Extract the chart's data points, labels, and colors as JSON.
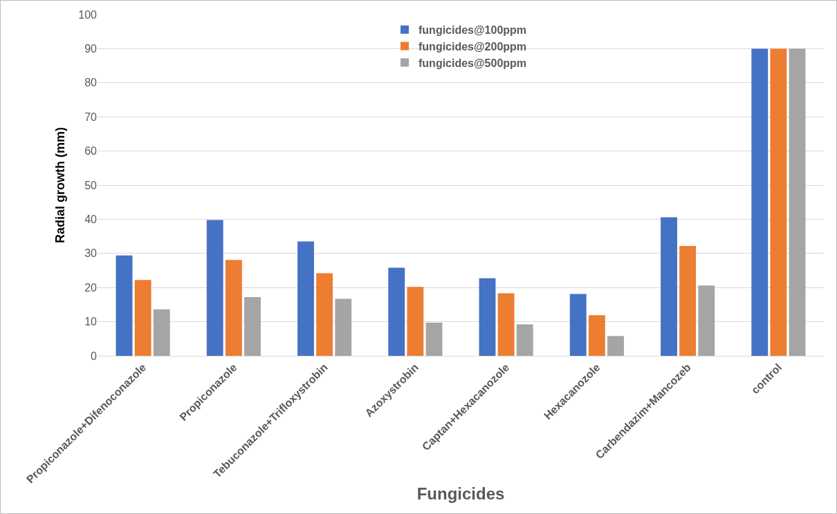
{
  "chart_data": {
    "type": "bar",
    "xlabel": "Fungicides",
    "ylabel": "Radial growth (mm)",
    "categories": [
      "Propiconazole+Difenoconazole",
      "Propiconazole",
      "Tebuconazole+Trifloxystrobin",
      "Azoxystrobin",
      "Captan+Hexacanozole",
      "Hexacanozole",
      "Carbendazim+Mancozeb",
      "control"
    ],
    "series": [
      {
        "name": "fungicides@100ppm",
        "color": "#4472c4",
        "values": [
          29.4,
          39.8,
          33.5,
          25.8,
          22.7,
          18.1,
          40.6,
          90
        ]
      },
      {
        "name": "fungicides@200ppm",
        "color": "#ed7d31",
        "values": [
          22.2,
          28.1,
          24.2,
          20.2,
          18.3,
          11.9,
          32.2,
          90
        ]
      },
      {
        "name": "fungicides@500ppm",
        "color": "#a5a5a5",
        "values": [
          13.6,
          17.2,
          16.7,
          9.7,
          9.2,
          5.8,
          20.6,
          90
        ]
      }
    ],
    "ylim": [
      0,
      100
    ],
    "yticks": [
      0,
      10,
      20,
      30,
      40,
      50,
      60,
      70,
      80,
      90,
      100
    ],
    "grid": "y",
    "legend": "top"
  }
}
